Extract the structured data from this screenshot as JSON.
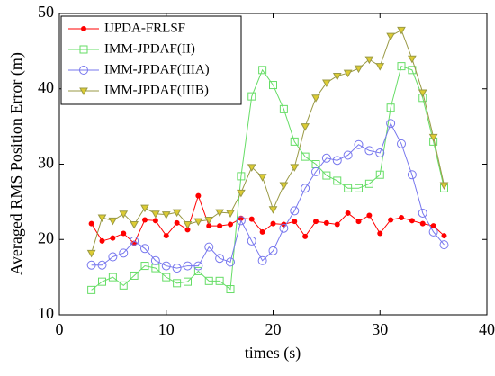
{
  "chart_data": {
    "type": "line",
    "xlabel": "times (s)",
    "ylabel": "Averaged RMS Position Error (m)",
    "x": [
      3,
      4,
      5,
      6,
      7,
      8,
      9,
      10,
      11,
      12,
      13,
      14,
      15,
      16,
      17,
      18,
      19,
      20,
      21,
      22,
      23,
      24,
      25,
      26,
      27,
      28,
      29,
      30,
      31,
      32,
      33,
      34,
      35,
      36
    ],
    "series": [
      {
        "name": "IJPDA-FRLSF",
        "color": "#ff0000",
        "marker": "filled-circle",
        "values": [
          22.1,
          19.8,
          20.2,
          20.8,
          19.5,
          22.6,
          22.5,
          20.5,
          22.2,
          21.3,
          25.8,
          21.8,
          21.8,
          22,
          22.8,
          22.7,
          21,
          22.1,
          22,
          22.4,
          20.4,
          22.4,
          22.2,
          22,
          23.5,
          22.4,
          23.2,
          20.8,
          22.6,
          22.9,
          22.5,
          22.1,
          21.8,
          20.5
        ]
      },
      {
        "name": "IMM-JPDAF(II)",
        "color": "#66dd66",
        "marker": "square",
        "values": [
          13.3,
          14.4,
          15,
          13.9,
          15.2,
          16.5,
          16.2,
          15,
          14.2,
          14.4,
          15.8,
          14.5,
          14.5,
          13.4,
          28.4,
          39,
          42.5,
          40.5,
          37.3,
          33,
          31,
          30,
          28.5,
          27.8,
          26.8,
          26.8,
          27.4,
          28.6,
          37.5,
          43,
          42.5,
          38.8,
          33,
          26.8
        ]
      },
      {
        "name": "IMM-JPDAF(IIIA)",
        "color": "#7777ee",
        "marker": "circle",
        "values": [
          16.6,
          16.6,
          17.7,
          18.2,
          19.8,
          18.8,
          17.2,
          16.5,
          16.2,
          16.5,
          16.5,
          19,
          17.5,
          17,
          22.5,
          19.8,
          17.2,
          18.5,
          21.5,
          23.8,
          26.8,
          29,
          30.8,
          30.5,
          31.2,
          32.6,
          31.8,
          31.5,
          35.4,
          32.7,
          28.6,
          23.5,
          21,
          19.3
        ]
      },
      {
        "name": "IMM-JPDAF(IIIB)",
        "color": "#999944",
        "marker": "star",
        "values": [
          18.2,
          22.9,
          22.5,
          23.4,
          22,
          24.2,
          23.4,
          23.3,
          23.6,
          22,
          22.4,
          22.6,
          23.6,
          23.5,
          26.2,
          29.6,
          28.3,
          24,
          27.2,
          29.6,
          35,
          38.8,
          40.8,
          41.7,
          42.1,
          42.7,
          43.9,
          43,
          47,
          47.8,
          44,
          39.5,
          33.6,
          27.2
        ]
      }
    ],
    "xlim": [
      0,
      40
    ],
    "xticks": [
      0,
      10,
      20,
      30,
      40
    ],
    "ylim": [
      10,
      50
    ],
    "yticks": [
      10,
      20,
      30,
      40,
      50
    ],
    "legend": "upper left"
  }
}
